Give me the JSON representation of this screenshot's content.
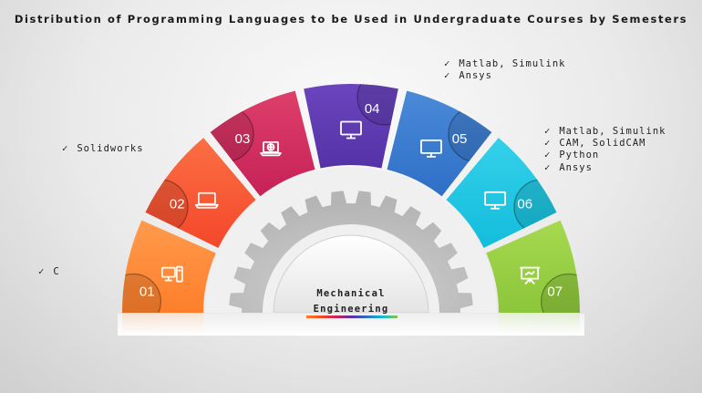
{
  "title": "Distribution of Programming Languages to be Used in Undergraduate Courses by Semesters",
  "center": {
    "line1": "Mechanical",
    "line2": "Engineering"
  },
  "segments": [
    {
      "number": "01",
      "icon": "desktop-computer-icon",
      "color": "#fd7e2a",
      "color2": "#ff9b4d"
    },
    {
      "number": "02",
      "icon": "laptop-icon",
      "color": "#f4472b",
      "color2": "#fb6f43"
    },
    {
      "number": "03",
      "icon": "web-laptop-icon",
      "color": "#c62158",
      "color2": "#de3f6a"
    },
    {
      "number": "04",
      "icon": "monitor-icon",
      "color": "#5432a6",
      "color2": "#6b45be"
    },
    {
      "number": "05",
      "icon": "monitor-icon",
      "color": "#2e6fc7",
      "color2": "#4b8ad8"
    },
    {
      "number": "06",
      "icon": "monitor-icon",
      "color": "#12bddb",
      "color2": "#35d0ea"
    },
    {
      "number": "07",
      "icon": "presentation-board-icon",
      "color": "#8cc63a",
      "color2": "#a6d950"
    }
  ],
  "lists": {
    "sem1": [
      "C"
    ],
    "sem2": [
      "Solidworks"
    ],
    "sem4": [
      "Matlab, Simulink",
      "Ansys"
    ],
    "sem6": [
      "Matlab, Simulink",
      "CAM, SolidCAM",
      "Python",
      "Ansys"
    ]
  },
  "check_glyph": "✓"
}
